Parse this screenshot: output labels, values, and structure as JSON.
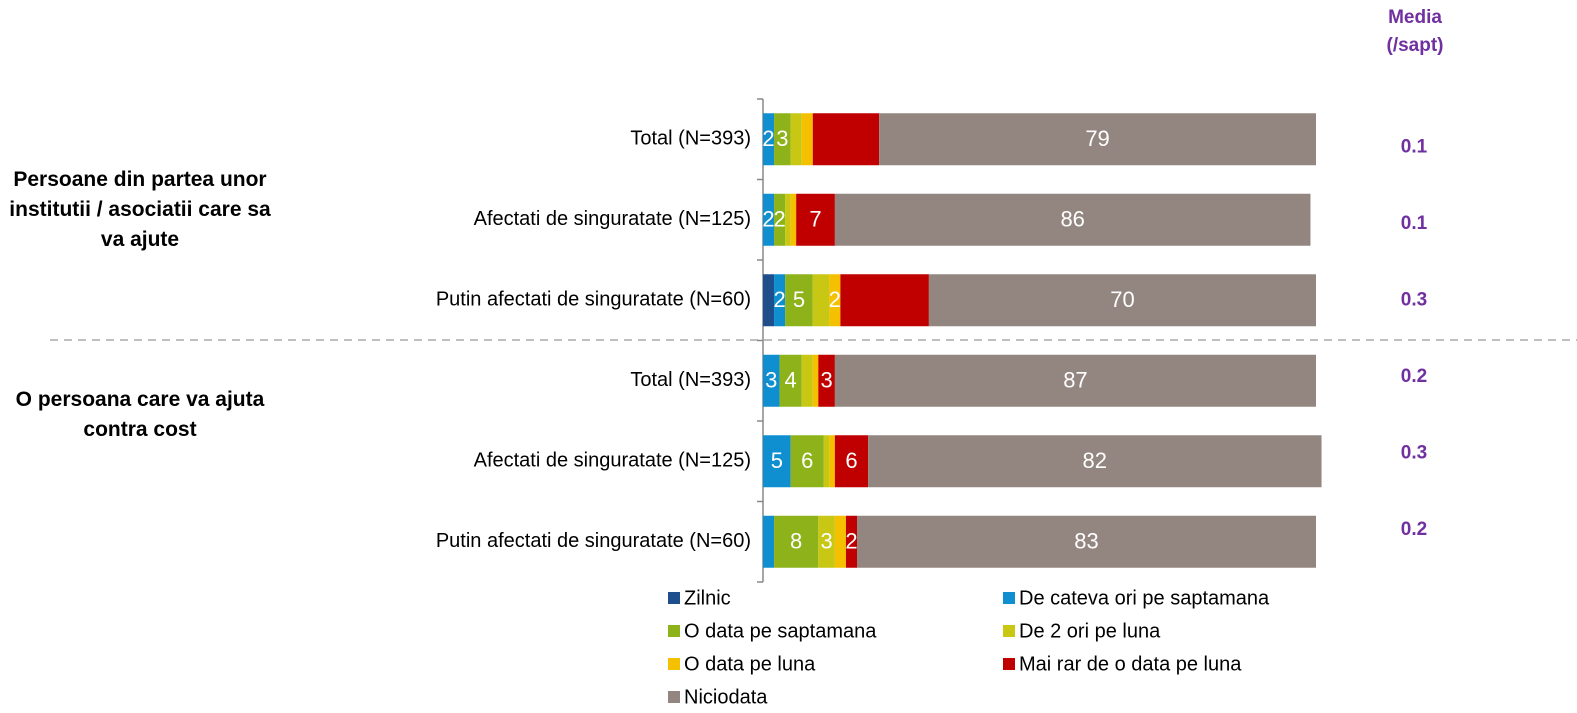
{
  "chart_data": {
    "type": "stacked_bar_horizontal",
    "categories": [
      "Total (N=393)",
      "Afectati de singuratate (N=125)",
      "Putin afectati de singuratate (N=60)",
      "Total (N=393)",
      "Afectati de singuratate (N=125)",
      "Putin afectati de singuratate (N=60)"
    ],
    "groups": [
      "Persoane din partea unor institutii / asociatii care sa va ajute",
      "O persoana care va ajuta contra cost"
    ],
    "xlim": [
      0,
      100
    ],
    "series": [
      {
        "name": "Zilnic",
        "color": "#1f4e8c",
        "values": [
          0,
          0,
          2,
          0,
          0,
          0
        ],
        "value_labels": [
          null,
          null,
          null,
          null,
          null,
          null
        ]
      },
      {
        "name": "De cateva ori pe saptamana",
        "color": "#0f8fd0",
        "values": [
          2,
          2,
          2,
          3,
          5,
          2
        ],
        "value_labels": [
          "2",
          "2",
          "2",
          "3",
          "5",
          null
        ]
      },
      {
        "name": "O data pe saptamana",
        "color": "#8db21a",
        "values": [
          3,
          2,
          5,
          4,
          6,
          8
        ],
        "value_labels": [
          "3",
          "2",
          "5",
          "4",
          "6",
          "8"
        ]
      },
      {
        "name": "De 2 ori pe luna",
        "color": "#c8c814",
        "values": [
          2,
          1,
          3,
          2,
          1,
          3
        ],
        "value_labels": [
          null,
          null,
          null,
          null,
          null,
          "3"
        ]
      },
      {
        "name": "O data pe luna",
        "color": "#f5c000",
        "values": [
          2,
          1,
          2,
          1,
          1,
          2
        ],
        "value_labels": [
          null,
          null,
          "2",
          null,
          null,
          null
        ]
      },
      {
        "name": "Mai rar de o data pe luna",
        "color": "#c00000",
        "values": [
          12,
          7,
          16,
          3,
          6,
          2
        ],
        "value_labels": [
          null,
          "7",
          null,
          "3",
          "6",
          "2"
        ]
      },
      {
        "name": "Niciodata",
        "color": "#938680",
        "values": [
          79,
          86,
          70,
          87,
          82,
          83
        ],
        "value_labels": [
          "79",
          "86",
          "70",
          "87",
          "82",
          "83"
        ]
      }
    ],
    "media": {
      "title": "Media (/sapt)",
      "values": [
        0.1,
        0.1,
        0.3,
        0.2,
        0.3,
        0.2
      ]
    }
  }
}
